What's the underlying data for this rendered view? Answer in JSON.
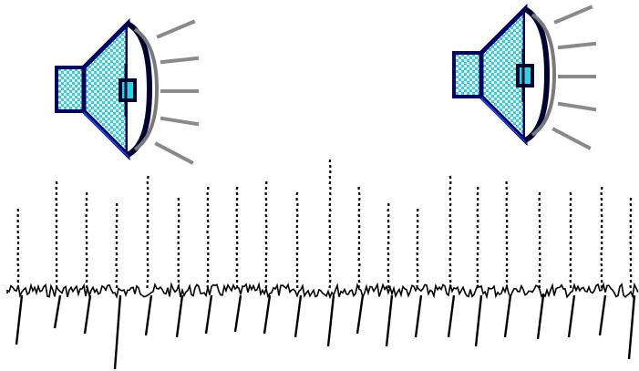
{
  "speakers": [
    {
      "name": "speaker-left-icon",
      "icon": "speaker-volume-icon",
      "colors": {
        "cone": "#29d6e0",
        "outline": "#000066",
        "body": "#1a3fd6",
        "waves": "#8a8a8a"
      }
    },
    {
      "name": "speaker-right-icon",
      "icon": "speaker-volume-icon",
      "colors": {
        "cone": "#29d6e0",
        "outline": "#000066",
        "body": "#1a3fd6",
        "waves": "#8a8a8a"
      }
    }
  ],
  "waveform": {
    "icon": "neural-spike-trace",
    "color": "#000000",
    "spike_count": 21
  }
}
